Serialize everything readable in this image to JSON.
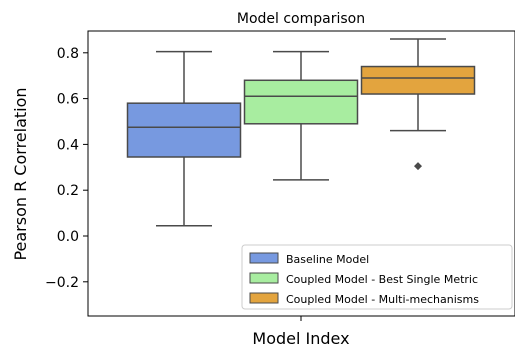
{
  "chart_data": {
    "type": "box",
    "title": "Model comparison",
    "xlabel": "Model Index",
    "ylabel": "Pearson R Correlation",
    "ylim": [
      -0.36,
      0.9
    ],
    "yticks": [
      -0.2,
      0.0,
      0.2,
      0.4,
      0.6,
      0.8
    ],
    "ytick_labels": [
      "−0.2",
      "0.0",
      "0.2",
      "0.4",
      "0.6",
      "0.8"
    ],
    "grid": false,
    "legend_position": "lower-right",
    "series": [
      {
        "name": "Baseline Model",
        "color": "#7799e0",
        "whisker_low": 0.045,
        "q1": 0.345,
        "median": 0.475,
        "q3": 0.58,
        "whisker_high": 0.805,
        "outliers": []
      },
      {
        "name": "Coupled Model - Best Single Metric",
        "color": "#a8eda0",
        "whisker_low": 0.245,
        "q1": 0.49,
        "median": 0.61,
        "q3": 0.68,
        "whisker_high": 0.805,
        "outliers": []
      },
      {
        "name": "Coupled Model - Multi-mechanisms",
        "color": "#e3a43e",
        "whisker_low": 0.46,
        "q1": 0.62,
        "median": 0.69,
        "q3": 0.74,
        "whisker_high": 0.86,
        "outliers": [
          0.305
        ]
      }
    ]
  }
}
